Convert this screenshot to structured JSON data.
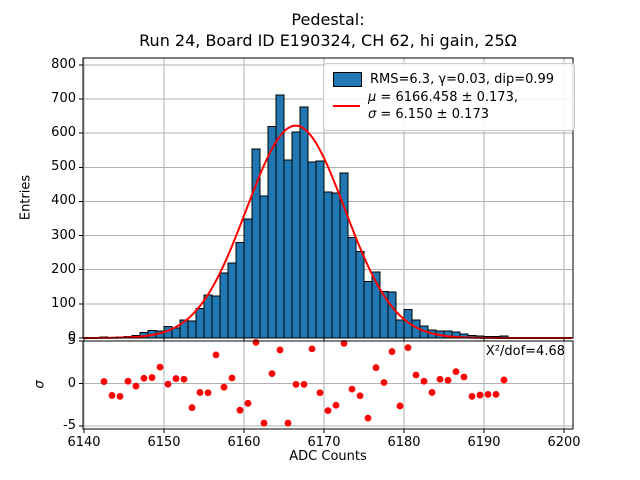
{
  "figure": {
    "title_line1": "Pedestal:",
    "title_line2": "Run 24, Board ID E190324, CH 62, hi gain, 25Ω"
  },
  "legend": {
    "hist_label": "RMS=6.3, γ=0.03, dip=0.99",
    "mu_symbol": "μ",
    "mu_rest": " = 6166.458 ± 0.173,",
    "sigma_symbol": "σ",
    "sigma_rest": " = 6.150 ± 0.173"
  },
  "colors": {
    "hist_fill": "#1f77b4",
    "hist_edge": "#000000",
    "fit_line": "#ff0000",
    "residual_dot": "#ff0000",
    "grid": "#b0b0b0",
    "spine": "#000000"
  },
  "chart_data": {
    "type": "histogram+fit+residuals",
    "title": "Pedestal: Run 24, Board ID E190324, CH 62, hi gain, 25Ω",
    "x_axis": {
      "label": "ADC Counts",
      "lim": [
        6139.875,
        6201.125
      ],
      "ticks": [
        6140,
        6150,
        6160,
        6170,
        6180,
        6190,
        6200
      ]
    },
    "main_panel": {
      "y_axis": {
        "label": "Entries",
        "lim": [
          0,
          820
        ],
        "ticks": [
          0,
          100,
          200,
          300,
          400,
          500,
          600,
          700,
          800
        ]
      },
      "histogram": {
        "bin_start": 6140,
        "bin_width": 1,
        "counts": [
          2,
          2,
          3,
          2,
          3,
          5,
          8,
          16,
          22,
          20,
          33,
          30,
          52,
          50,
          86,
          126,
          123,
          190,
          220,
          280,
          348,
          553,
          416,
          619,
          712,
          521,
          604,
          677,
          516,
          518,
          428,
          424,
          483,
          295,
          253,
          165,
          194,
          136,
          135,
          53,
          84,
          53,
          35,
          23,
          21,
          20,
          17,
          12,
          8,
          6,
          5,
          4,
          6
        ]
      },
      "fit_curve": {
        "shape": "gaussian",
        "mu": 6166.458,
        "mu_err": 0.173,
        "sigma": 6.15,
        "sigma_err": 0.173,
        "peak": 622,
        "rms": 6.3,
        "gamma": 0.03,
        "dip": 0.99
      }
    },
    "residual_panel": {
      "y_axis": {
        "label": "σ",
        "lim": [
          -5.35,
          5.0
        ],
        "ticks": [
          5,
          0,
          -5
        ]
      },
      "annotation": "X²/dof=4.68",
      "points": [
        [
          6142.5,
          0.23
        ],
        [
          6143.5,
          -1.4
        ],
        [
          6144.5,
          -1.51
        ],
        [
          6145.5,
          0.27
        ],
        [
          6146.5,
          -0.31
        ],
        [
          6147.5,
          0.62
        ],
        [
          6148.5,
          0.7
        ],
        [
          6149.5,
          1.93
        ],
        [
          6150.5,
          -0.08
        ],
        [
          6151.5,
          0.58
        ],
        [
          6152.5,
          0.5
        ],
        [
          6153.5,
          -2.84
        ],
        [
          6154.5,
          -1.05
        ],
        [
          6155.5,
          -1.09
        ],
        [
          6156.5,
          3.37
        ],
        [
          6157.5,
          -0.43
        ],
        [
          6158.5,
          0.65
        ],
        [
          6159.5,
          -3.14
        ],
        [
          6160.5,
          -2.33
        ],
        [
          6161.5,
          4.84
        ],
        [
          6162.5,
          -4.65
        ],
        [
          6163.5,
          1.16
        ],
        [
          6164.5,
          3.95
        ],
        [
          6165.5,
          -4.65
        ],
        [
          6166.5,
          -0.1
        ],
        [
          6167.5,
          -0.1
        ],
        [
          6168.5,
          4.07
        ],
        [
          6169.5,
          -1.09
        ],
        [
          6170.5,
          -3.19
        ],
        [
          6171.5,
          -2.56
        ],
        [
          6172.5,
          4.72
        ],
        [
          6173.5,
          -0.66
        ],
        [
          6174.5,
          -1.44
        ],
        [
          6175.5,
          -4.07
        ],
        [
          6176.5,
          1.86
        ],
        [
          6177.5,
          0.12
        ],
        [
          6178.5,
          3.76
        ],
        [
          6179.5,
          -2.64
        ],
        [
          6180.5,
          4.22
        ],
        [
          6181.5,
          1.0
        ],
        [
          6182.5,
          0.27
        ],
        [
          6183.5,
          -1.05
        ],
        [
          6184.5,
          0.5
        ],
        [
          6185.5,
          0.38
        ],
        [
          6186.5,
          1.4
        ],
        [
          6187.5,
          0.77
        ],
        [
          6188.5,
          -1.51
        ],
        [
          6189.5,
          -1.36
        ],
        [
          6190.5,
          -1.28
        ],
        [
          6191.5,
          -1.28
        ],
        [
          6192.5,
          0.42
        ]
      ]
    }
  }
}
